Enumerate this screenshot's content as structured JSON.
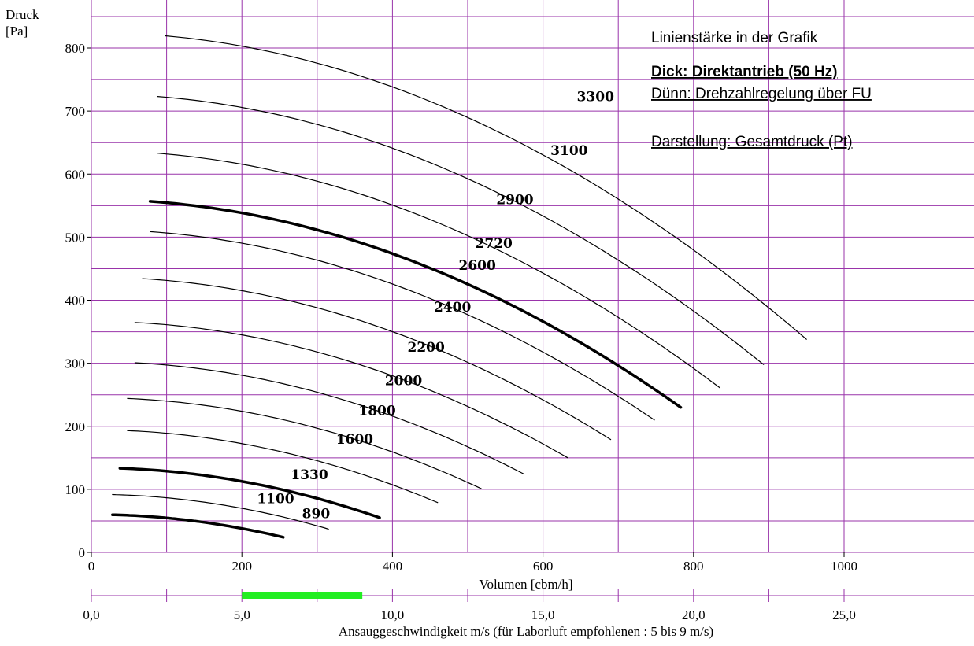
{
  "chart_data": {
    "type": "line",
    "ylabel_line1": "Druck",
    "ylabel_line2": "[Pa]",
    "xlabel": "Volumen [cbm/h]",
    "x2label": "Ansauggeschwindigkeit m/s   (für Laborluft empfohlenen : 5 bis 9 m/s)",
    "xlim": [
      0,
      1050
    ],
    "ylim": [
      0,
      860
    ],
    "x_ticks": [
      "0",
      "200",
      "400",
      "600",
      "800",
      "1000"
    ],
    "y_ticks": [
      "0",
      "100",
      "200",
      "300",
      "400",
      "500",
      "600",
      "700",
      "800"
    ],
    "x2_ticks": [
      "0,0",
      "5,0",
      "10,0",
      "15,0",
      "20,0",
      "25,0"
    ],
    "x2_range": [
      0,
      25
    ],
    "recommended_velocity_range": [
      5,
      9
    ],
    "recommended_color": "#22ee22",
    "grid": true,
    "grid_color": "#9933aa",
    "legend": {
      "title": "Linienstärke in der Grafik",
      "thick": "Dick: Direktantrieb (50 Hz)",
      "thin": "Dünn: Drehzahlregelung über FU",
      "display": "Darstellung: Gesamtdruck (Pt)"
    },
    "series": [
      {
        "name": "890",
        "thick": true,
        "x_start": 28,
        "x_end": 255,
        "p0": 60,
        "p_end": 24
      },
      {
        "name": "1100",
        "thick": false,
        "x_start": 28,
        "x_end": 315,
        "p0": 92,
        "p_end": 37
      },
      {
        "name": "1330",
        "thick": true,
        "x_start": 38,
        "x_end": 383,
        "p0": 134,
        "p_end": 55
      },
      {
        "name": "1600",
        "thick": false,
        "x_start": 48,
        "x_end": 460,
        "p0": 194,
        "p_end": 79
      },
      {
        "name": "1800",
        "thick": false,
        "x_start": 48,
        "x_end": 518,
        "p0": 245,
        "p_end": 101
      },
      {
        "name": "2000",
        "thick": false,
        "x_start": 58,
        "x_end": 575,
        "p0": 302,
        "p_end": 124
      },
      {
        "name": "2200",
        "thick": false,
        "x_start": 58,
        "x_end": 633,
        "p0": 366,
        "p_end": 150
      },
      {
        "name": "2400",
        "thick": false,
        "x_start": 68,
        "x_end": 690,
        "p0": 436,
        "p_end": 179
      },
      {
        "name": "2600",
        "thick": false,
        "x_start": 78,
        "x_end": 748,
        "p0": 511,
        "p_end": 210
      },
      {
        "name": "2720",
        "thick": true,
        "x_start": 78,
        "x_end": 783,
        "p0": 559,
        "p_end": 230
      },
      {
        "name": "2900",
        "thick": false,
        "x_start": 88,
        "x_end": 835,
        "p0": 636,
        "p_end": 261
      },
      {
        "name": "3100",
        "thick": false,
        "x_start": 88,
        "x_end": 893,
        "p0": 726,
        "p_end": 298
      },
      {
        "name": "3300",
        "thick": false,
        "x_start": 98,
        "x_end": 950,
        "p0": 823,
        "p_end": 338
      }
    ],
    "series_labels": [
      {
        "name": "890",
        "x": 280,
        "y": 54
      },
      {
        "name": "1100",
        "x": 220,
        "y": 78
      },
      {
        "name": "1330",
        "x": 265,
        "y": 116
      },
      {
        "name": "1600",
        "x": 325,
        "y": 172
      },
      {
        "name": "1800",
        "x": 355,
        "y": 218
      },
      {
        "name": "2000",
        "x": 390,
        "y": 265
      },
      {
        "name": "2200",
        "x": 420,
        "y": 318
      },
      {
        "name": "2400",
        "x": 455,
        "y": 382
      },
      {
        "name": "2600",
        "x": 488,
        "y": 448
      },
      {
        "name": "2720",
        "x": 510,
        "y": 483
      },
      {
        "name": "2900",
        "x": 538,
        "y": 552
      },
      {
        "name": "3100",
        "x": 610,
        "y": 630
      },
      {
        "name": "3300",
        "x": 645,
        "y": 716
      }
    ]
  }
}
